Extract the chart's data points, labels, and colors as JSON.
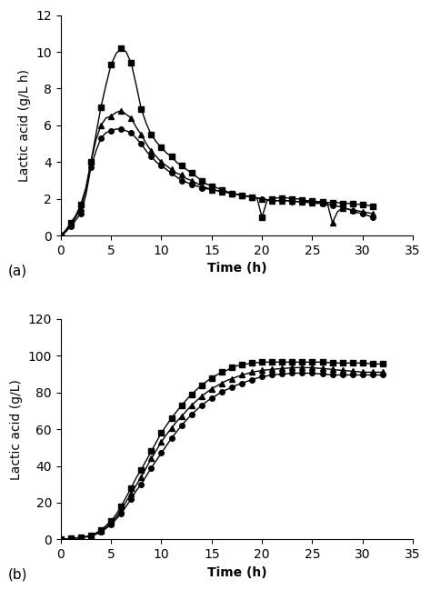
{
  "panel_a": {
    "ylabel": "Lactic acid (g/L h)",
    "xlabel": "Time (h)",
    "label": "(a)",
    "ylim": [
      0,
      12
    ],
    "xlim": [
      0,
      35
    ],
    "yticks": [
      0,
      2,
      4,
      6,
      8,
      10,
      12
    ],
    "xticks": [
      0,
      5,
      10,
      15,
      20,
      25,
      30,
      35
    ],
    "series": {
      "square": {
        "x": [
          0,
          0.5,
          1.0,
          1.5,
          2.0,
          2.5,
          3.0,
          3.5,
          4.0,
          4.5,
          5.0,
          5.5,
          6.0,
          6.5,
          7.0,
          7.5,
          8.0,
          8.5,
          9.0,
          9.5,
          10.0,
          10.5,
          11.0,
          11.5,
          12.0,
          12.5,
          13.0,
          13.5,
          14.0,
          14.5,
          15.0,
          15.5,
          16.0,
          16.5,
          17.0,
          17.5,
          18.0,
          18.5,
          19.0,
          19.5,
          20.0,
          20.5,
          21.0,
          21.5,
          22.0,
          22.5,
          23.0,
          23.5,
          24.0,
          24.5,
          25.0,
          25.5,
          26.0,
          26.5,
          27.0,
          27.5,
          28.0,
          28.5,
          29.0,
          29.5,
          30.0,
          30.5,
          31.0
        ],
        "y": [
          0,
          0.3,
          0.7,
          1.1,
          1.7,
          2.6,
          4.0,
          5.5,
          7.0,
          8.2,
          9.3,
          9.9,
          10.2,
          10.0,
          9.4,
          8.2,
          6.9,
          6.1,
          5.5,
          5.1,
          4.8,
          4.5,
          4.3,
          4.0,
          3.8,
          3.6,
          3.4,
          3.2,
          3.0,
          2.8,
          2.7,
          2.6,
          2.5,
          2.4,
          2.3,
          2.25,
          2.2,
          2.15,
          2.1,
          2.05,
          1.0,
          1.9,
          2.0,
          2.05,
          2.05,
          2.05,
          2.0,
          2.0,
          1.95,
          1.9,
          1.9,
          1.85,
          1.85,
          1.8,
          1.8,
          1.8,
          1.75,
          1.75,
          1.75,
          1.7,
          1.7,
          1.65,
          1.6
        ]
      },
      "triangle": {
        "x": [
          0,
          0.5,
          1.0,
          1.5,
          2.0,
          2.5,
          3.0,
          3.5,
          4.0,
          4.5,
          5.0,
          5.5,
          6.0,
          6.5,
          7.0,
          7.5,
          8.0,
          8.5,
          9.0,
          9.5,
          10.0,
          10.5,
          11.0,
          11.5,
          12.0,
          12.5,
          13.0,
          13.5,
          14.0,
          14.5,
          15.0,
          15.5,
          16.0,
          16.5,
          17.0,
          17.5,
          18.0,
          18.5,
          19.0,
          19.5,
          20.0,
          20.5,
          21.0,
          21.5,
          22.0,
          22.5,
          23.0,
          23.5,
          24.0,
          24.5,
          25.0,
          25.5,
          26.0,
          26.5,
          27.0,
          27.5,
          28.0,
          28.5,
          29.0,
          29.5,
          30.0,
          30.5,
          31.0
        ],
        "y": [
          0,
          0.25,
          0.6,
          1.0,
          1.5,
          2.5,
          4.0,
          5.2,
          6.0,
          6.4,
          6.5,
          6.7,
          6.8,
          6.6,
          6.4,
          5.9,
          5.5,
          5.0,
          4.6,
          4.3,
          4.0,
          3.8,
          3.6,
          3.4,
          3.3,
          3.1,
          3.0,
          2.85,
          2.7,
          2.6,
          2.5,
          2.45,
          2.4,
          2.35,
          2.3,
          2.25,
          2.2,
          2.15,
          2.1,
          2.05,
          2.0,
          1.95,
          1.9,
          1.9,
          1.9,
          1.9,
          1.9,
          1.85,
          1.85,
          1.85,
          1.8,
          1.8,
          1.8,
          1.75,
          0.7,
          1.3,
          1.5,
          1.45,
          1.4,
          1.35,
          1.3,
          1.25,
          1.2
        ]
      },
      "circle": {
        "x": [
          0,
          0.5,
          1.0,
          1.5,
          2.0,
          2.5,
          3.0,
          3.5,
          4.0,
          4.5,
          5.0,
          5.5,
          6.0,
          6.5,
          7.0,
          7.5,
          8.0,
          8.5,
          9.0,
          9.5,
          10.0,
          10.5,
          11.0,
          11.5,
          12.0,
          12.5,
          13.0,
          13.5,
          14.0,
          14.5,
          15.0,
          15.5,
          16.0,
          16.5,
          17.0,
          17.5,
          18.0,
          18.5,
          19.0,
          19.5,
          20.0,
          20.5,
          21.0,
          21.5,
          22.0,
          22.5,
          23.0,
          23.5,
          24.0,
          24.5,
          25.0,
          25.5,
          26.0,
          26.5,
          27.0,
          27.5,
          28.0,
          28.5,
          29.0,
          29.5,
          30.0,
          30.5,
          31.0
        ],
        "y": [
          0,
          0.2,
          0.5,
          0.85,
          1.2,
          2.2,
          3.7,
          4.6,
          5.3,
          5.6,
          5.7,
          5.8,
          5.8,
          5.7,
          5.6,
          5.3,
          5.0,
          4.6,
          4.3,
          4.0,
          3.8,
          3.6,
          3.4,
          3.2,
          3.0,
          2.9,
          2.8,
          2.7,
          2.6,
          2.55,
          2.5,
          2.45,
          2.4,
          2.35,
          2.3,
          2.25,
          2.2,
          2.15,
          2.1,
          2.05,
          2.0,
          1.95,
          1.9,
          1.9,
          1.9,
          1.9,
          1.85,
          1.85,
          1.85,
          1.8,
          1.8,
          1.75,
          1.75,
          1.7,
          1.65,
          1.6,
          1.55,
          1.45,
          1.35,
          1.25,
          1.2,
          1.1,
          1.0
        ]
      }
    }
  },
  "panel_b": {
    "ylabel": "Lactic acid (g/L)",
    "xlabel": "Time (h)",
    "label": "(b)",
    "ylim": [
      0,
      120
    ],
    "xlim": [
      0,
      35
    ],
    "yticks": [
      0,
      20,
      40,
      60,
      80,
      100,
      120
    ],
    "xticks": [
      0,
      5,
      10,
      15,
      20,
      25,
      30,
      35
    ],
    "series": {
      "square": {
        "x": [
          0,
          0.5,
          1.0,
          1.5,
          2.0,
          2.5,
          3.0,
          3.5,
          4.0,
          4.5,
          5.0,
          5.5,
          6.0,
          6.5,
          7.0,
          7.5,
          8.0,
          8.5,
          9.0,
          9.5,
          10.0,
          10.5,
          11.0,
          11.5,
          12.0,
          12.5,
          13.0,
          13.5,
          14.0,
          14.5,
          15.0,
          15.5,
          16.0,
          16.5,
          17.0,
          17.5,
          18.0,
          18.5,
          19.0,
          19.5,
          20.0,
          20.5,
          21.0,
          21.5,
          22.0,
          22.5,
          23.0,
          23.5,
          24.0,
          24.5,
          25.0,
          25.5,
          26.0,
          26.5,
          27.0,
          27.5,
          28.0,
          28.5,
          29.0,
          29.5,
          30.0,
          30.5,
          31.0,
          31.5,
          32.0
        ],
        "y": [
          0,
          0.2,
          0.5,
          0.8,
          1.0,
          1.5,
          2.0,
          3.5,
          5.0,
          7.5,
          10.0,
          13.5,
          18.0,
          23.0,
          28.0,
          33.5,
          38.0,
          43.0,
          48.0,
          53.0,
          58.0,
          62.0,
          66.0,
          69.5,
          73.0,
          76.0,
          79.0,
          81.5,
          84.0,
          86.0,
          88.0,
          89.5,
          91.0,
          92.0,
          93.5,
          94.5,
          95.0,
          95.5,
          96.0,
          96.2,
          96.5,
          96.5,
          96.5,
          96.5,
          96.5,
          96.5,
          96.5,
          96.5,
          96.5,
          96.5,
          96.5,
          96.5,
          96.5,
          96.3,
          96.2,
          96.0,
          96.0,
          96.0,
          96.0,
          96.0,
          96.0,
          95.8,
          95.5,
          95.5,
          95.5
        ]
      },
      "triangle": {
        "x": [
          0,
          0.5,
          1.0,
          1.5,
          2.0,
          2.5,
          3.0,
          3.5,
          4.0,
          4.5,
          5.0,
          5.5,
          6.0,
          6.5,
          7.0,
          7.5,
          8.0,
          8.5,
          9.0,
          9.5,
          10.0,
          10.5,
          11.0,
          11.5,
          12.0,
          12.5,
          13.0,
          13.5,
          14.0,
          14.5,
          15.0,
          15.5,
          16.0,
          16.5,
          17.0,
          17.5,
          18.0,
          18.5,
          19.0,
          19.5,
          20.0,
          20.5,
          21.0,
          21.5,
          22.0,
          22.5,
          23.0,
          23.5,
          24.0,
          24.5,
          25.0,
          25.5,
          26.0,
          26.5,
          27.0,
          27.5,
          28.0,
          28.5,
          29.0,
          29.5,
          30.0,
          30.5,
          31.0,
          31.5,
          32.0
        ],
        "y": [
          0,
          0.2,
          0.5,
          0.8,
          1.0,
          1.5,
          2.0,
          3.0,
          4.5,
          6.5,
          9.0,
          12.0,
          16.0,
          20.5,
          25.0,
          29.5,
          34.0,
          39.0,
          44.0,
          48.5,
          53.0,
          57.0,
          60.5,
          64.0,
          67.0,
          70.0,
          73.0,
          75.5,
          78.0,
          80.0,
          82.0,
          83.5,
          85.0,
          86.5,
          87.5,
          88.5,
          89.5,
          90.2,
          91.0,
          91.5,
          92.0,
          92.3,
          92.5,
          92.8,
          93.0,
          93.2,
          93.5,
          93.5,
          93.5,
          93.5,
          93.5,
          93.2,
          93.0,
          92.8,
          92.5,
          92.2,
          92.0,
          91.8,
          91.5,
          91.3,
          91.0,
          91.0,
          91.0,
          91.0,
          91.0
        ]
      },
      "circle": {
        "x": [
          0,
          0.5,
          1.0,
          1.5,
          2.0,
          2.5,
          3.0,
          3.5,
          4.0,
          4.5,
          5.0,
          5.5,
          6.0,
          6.5,
          7.0,
          7.5,
          8.0,
          8.5,
          9.0,
          9.5,
          10.0,
          10.5,
          11.0,
          11.5,
          12.0,
          12.5,
          13.0,
          13.5,
          14.0,
          14.5,
          15.0,
          15.5,
          16.0,
          16.5,
          17.0,
          17.5,
          18.0,
          18.5,
          19.0,
          19.5,
          20.0,
          20.5,
          21.0,
          21.5,
          22.0,
          22.5,
          23.0,
          23.5,
          24.0,
          24.5,
          25.0,
          25.5,
          26.0,
          26.5,
          27.0,
          27.5,
          28.0,
          28.5,
          29.0,
          29.5,
          30.0,
          30.5,
          31.0,
          31.5,
          32.0
        ],
        "y": [
          0,
          0.2,
          0.5,
          0.8,
          1.0,
          1.3,
          1.8,
          2.8,
          4.0,
          6.0,
          8.0,
          11.0,
          14.0,
          18.0,
          22.0,
          26.5,
          30.0,
          34.5,
          39.0,
          43.0,
          47.0,
          51.0,
          55.0,
          58.5,
          62.0,
          65.0,
          68.0,
          70.5,
          73.0,
          75.0,
          77.0,
          78.5,
          80.5,
          81.5,
          83.0,
          84.0,
          85.0,
          86.0,
          87.0,
          87.8,
          88.5,
          89.0,
          89.5,
          89.8,
          90.0,
          90.2,
          90.5,
          90.5,
          90.5,
          90.5,
          90.5,
          90.2,
          90.0,
          89.8,
          89.5,
          89.5,
          89.5,
          89.5,
          89.5,
          89.5,
          89.5,
          89.5,
          89.5,
          89.5,
          89.5
        ]
      }
    }
  },
  "marker_size": 4,
  "marker_every_a": 2,
  "marker_every_b": 2,
  "line_width": 1.0,
  "color": "#000000",
  "font_size": 10,
  "label_font_size": 11
}
